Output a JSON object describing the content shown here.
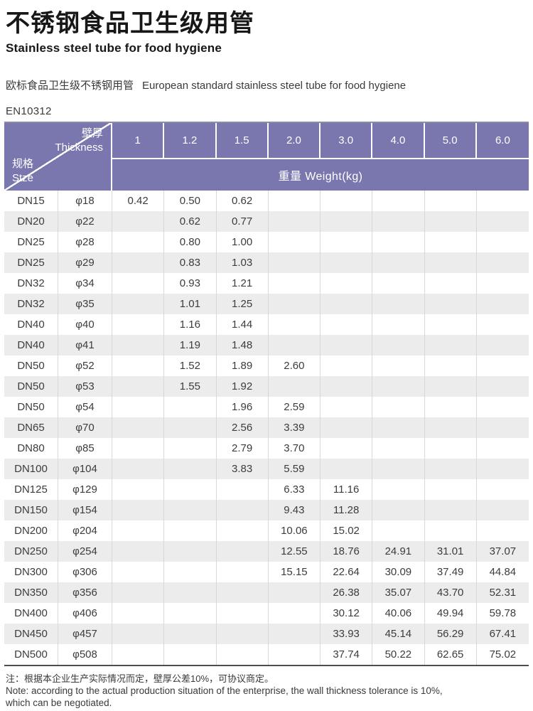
{
  "header": {
    "title_zh": "不锈钢食品卫生级用管",
    "title_en": "Stainless steel tube for food hygiene",
    "subtitle_zh": "欧标食品卫生级不锈钢用管",
    "subtitle_en": "European standard stainless steel tube for food hygiene",
    "standard": "EN10312"
  },
  "colors": {
    "header_purple": "#7a77af",
    "row_alt_gray": "#ececec",
    "divider_gray": "#d8d8d8",
    "table_bottom_border": "#4f4f4f"
  },
  "table": {
    "corner": {
      "top_zh": "壁厚",
      "top_en": "Thickness",
      "bottom_zh": "规格",
      "bottom_en": "Stze"
    },
    "thickness_headers": [
      "1",
      "1.2",
      "1.5",
      "2.0",
      "3.0",
      "4.0",
      "5.0",
      "6.0"
    ],
    "weight_header": "重量 Weight(kg)",
    "rows": [
      {
        "dn": "DN15",
        "dia": "φ18",
        "weights": [
          "0.42",
          "0.50",
          "0.62",
          "",
          "",
          "",
          "",
          ""
        ]
      },
      {
        "dn": "DN20",
        "dia": "φ22",
        "weights": [
          "",
          "0.62",
          "0.77",
          "",
          "",
          "",
          "",
          ""
        ]
      },
      {
        "dn": "DN25",
        "dia": "φ28",
        "weights": [
          "",
          "0.80",
          "1.00",
          "",
          "",
          "",
          "",
          ""
        ]
      },
      {
        "dn": "DN25",
        "dia": "φ29",
        "weights": [
          "",
          "0.83",
          "1.03",
          "",
          "",
          "",
          "",
          ""
        ]
      },
      {
        "dn": "DN32",
        "dia": "φ34",
        "weights": [
          "",
          "0.93",
          "1.21",
          "",
          "",
          "",
          "",
          ""
        ]
      },
      {
        "dn": "DN32",
        "dia": "φ35",
        "weights": [
          "",
          "1.01",
          "1.25",
          "",
          "",
          "",
          "",
          ""
        ]
      },
      {
        "dn": "DN40",
        "dia": "φ40",
        "weights": [
          "",
          "1.16",
          "1.44",
          "",
          "",
          "",
          "",
          ""
        ]
      },
      {
        "dn": "DN40",
        "dia": "φ41",
        "weights": [
          "",
          "1.19",
          "1.48",
          "",
          "",
          "",
          "",
          ""
        ]
      },
      {
        "dn": "DN50",
        "dia": "φ52",
        "weights": [
          "",
          "1.52",
          "1.89",
          "2.60",
          "",
          "",
          "",
          ""
        ]
      },
      {
        "dn": "DN50",
        "dia": "φ53",
        "weights": [
          "",
          "1.55",
          "1.92",
          "",
          "",
          "",
          "",
          ""
        ]
      },
      {
        "dn": "DN50",
        "dia": "φ54",
        "weights": [
          "",
          "",
          "1.96",
          "2.59",
          "",
          "",
          "",
          ""
        ]
      },
      {
        "dn": "DN65",
        "dia": "φ70",
        "weights": [
          "",
          "",
          "2.56",
          "3.39",
          "",
          "",
          "",
          ""
        ]
      },
      {
        "dn": "DN80",
        "dia": "φ85",
        "weights": [
          "",
          "",
          "2.79",
          "3.70",
          "",
          "",
          "",
          ""
        ]
      },
      {
        "dn": "DN100",
        "dia": "φ104",
        "weights": [
          "",
          "",
          "3.83",
          "5.59",
          "",
          "",
          "",
          ""
        ]
      },
      {
        "dn": "DN125",
        "dia": "φ129",
        "weights": [
          "",
          "",
          "",
          "6.33",
          "11.16",
          "",
          "",
          ""
        ]
      },
      {
        "dn": "DN150",
        "dia": "φ154",
        "weights": [
          "",
          "",
          "",
          "9.43",
          "11.28",
          "",
          "",
          ""
        ]
      },
      {
        "dn": "DN200",
        "dia": "φ204",
        "weights": [
          "",
          "",
          "",
          "10.06",
          "15.02",
          "",
          "",
          ""
        ]
      },
      {
        "dn": "DN250",
        "dia": "φ254",
        "weights": [
          "",
          "",
          "",
          "12.55",
          "18.76",
          "24.91",
          "31.01",
          "37.07"
        ]
      },
      {
        "dn": "DN300",
        "dia": "φ306",
        "weights": [
          "",
          "",
          "",
          "15.15",
          "22.64",
          "30.09",
          "37.49",
          "44.84"
        ]
      },
      {
        "dn": "DN350",
        "dia": "φ356",
        "weights": [
          "",
          "",
          "",
          "",
          "26.38",
          "35.07",
          "43.70",
          "52.31"
        ]
      },
      {
        "dn": "DN400",
        "dia": "φ406",
        "weights": [
          "",
          "",
          "",
          "",
          "30.12",
          "40.06",
          "49.94",
          "59.78"
        ]
      },
      {
        "dn": "DN450",
        "dia": "φ457",
        "weights": [
          "",
          "",
          "",
          "",
          "33.93",
          "45.14",
          "56.29",
          "67.41"
        ]
      },
      {
        "dn": "DN500",
        "dia": "φ508",
        "weights": [
          "",
          "",
          "",
          "",
          "37.74",
          "50.22",
          "62.65",
          "75.02"
        ]
      }
    ]
  },
  "notes": {
    "zh": "注：根据本企业生产实际情况而定，壁厚公差10%，可协议商定。",
    "en_line1": "Note: according to the actual production situation of the enterprise, the wall thickness tolerance is 10%,",
    "en_line2": "which can be negotiated."
  }
}
